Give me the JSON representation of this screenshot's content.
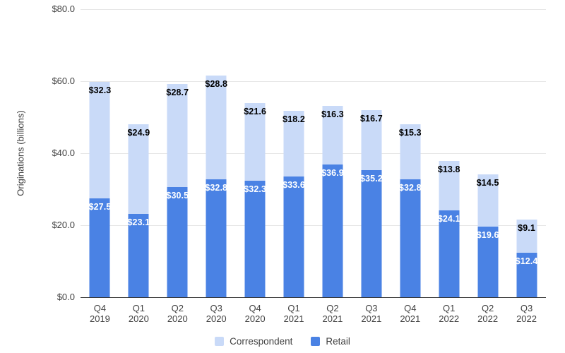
{
  "chart_data": {
    "type": "bar",
    "stacked": true,
    "ylabel": "Originations (billions)",
    "xlabel": "",
    "ylim": [
      0,
      80
    ],
    "grid": true,
    "legend_position": "bottom",
    "value_prefix": "$",
    "categories": [
      [
        "Q4",
        "2019"
      ],
      [
        "Q1",
        "2020"
      ],
      [
        "Q2",
        "2020"
      ],
      [
        "Q3",
        "2020"
      ],
      [
        "Q4",
        "2020"
      ],
      [
        "Q1",
        "2021"
      ],
      [
        "Q2",
        "2021"
      ],
      [
        "Q3",
        "2021"
      ],
      [
        "Q4",
        "2021"
      ],
      [
        "Q1",
        "2022"
      ],
      [
        "Q2",
        "2022"
      ],
      [
        "Q3",
        "2022"
      ]
    ],
    "series": [
      {
        "name": "Correspondent",
        "color": "#c9daf8",
        "label_color": "#000000",
        "values": [
          32.3,
          24.9,
          28.7,
          28.8,
          21.6,
          18.2,
          16.3,
          16.7,
          15.3,
          13.8,
          14.5,
          9.1
        ]
      },
      {
        "name": "Retail",
        "color": "#4a82e4",
        "label_color": "#ffffff",
        "values": [
          27.5,
          23.1,
          30.5,
          32.8,
          32.3,
          33.6,
          36.9,
          35.2,
          32.8,
          24.1,
          19.6,
          12.4
        ]
      }
    ],
    "stack_bottom_to_top": [
      "Retail",
      "Correspondent"
    ],
    "yticks": [
      {
        "value": 80,
        "label": "$80.0"
      },
      {
        "value": 60,
        "label": "$60.0"
      },
      {
        "value": 40,
        "label": "$40.0"
      },
      {
        "value": 20,
        "label": "$20.0"
      },
      {
        "value": 0,
        "label": "$0.0"
      }
    ],
    "colors": {
      "grid": "#e6e6e6",
      "baseline": "#333333",
      "axis_text": "#424242",
      "legend_text": "#424242"
    }
  }
}
